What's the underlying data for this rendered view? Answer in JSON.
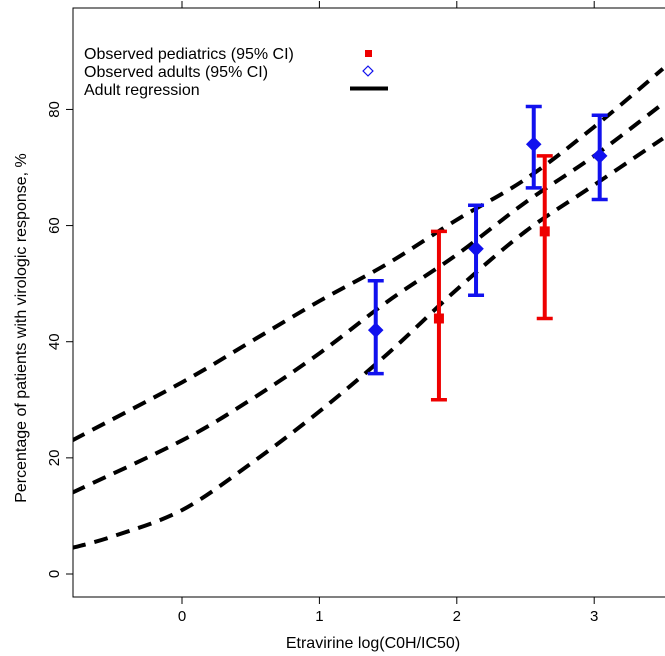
{
  "chart_data": {
    "type": "scatter",
    "xlabel": "Etravirine log(C0H/IC50)",
    "ylabel": "Percentage of patients with virologic response, %",
    "xlim": [
      -0.8,
      3.5
    ],
    "ylim": [
      -4,
      97
    ],
    "x_ticks": [
      0,
      1,
      2,
      3
    ],
    "x_tick_labels": [
      "0",
      "1",
      "2",
      "3"
    ],
    "y_ticks": [
      0,
      20,
      40,
      60,
      80
    ],
    "y_tick_labels": [
      "0",
      "20",
      "40",
      "60",
      "80"
    ],
    "legend_position": "top-left",
    "grid": false,
    "series": [
      {
        "name": "Observed pediatrics (95% CI)",
        "color": "#ee0000",
        "marker": "square",
        "points": [
          {
            "x": 1.87,
            "y": 44,
            "lo": 30,
            "hi": 59
          },
          {
            "x": 2.64,
            "y": 59,
            "lo": 44,
            "hi": 72
          }
        ]
      },
      {
        "name": "Observed adults (95% CI)",
        "color": "#1111ee",
        "marker": "diamond",
        "points": [
          {
            "x": 1.41,
            "y": 42,
            "lo": 34.5,
            "hi": 50.5
          },
          {
            "x": 2.14,
            "y": 56,
            "lo": 48,
            "hi": 63.5
          },
          {
            "x": 2.56,
            "y": 74,
            "lo": 66.5,
            "hi": 80.5
          },
          {
            "x": 3.04,
            "y": 72,
            "lo": 64.5,
            "hi": 79
          }
        ]
      },
      {
        "name": "Adult regression",
        "color": "#000000",
        "line": "dashed",
        "curves": [
          {
            "label": "upper",
            "x": [
              -0.8,
              0,
              0.5,
              1,
              1.5,
              2,
              2.5,
              3,
              3.5
            ],
            "y": [
              23,
              33,
              40,
              47,
              53.5,
              61,
              68,
              77,
              87
            ]
          },
          {
            "label": "mid",
            "x": [
              -0.8,
              0,
              0.5,
              1,
              1.5,
              2,
              2.5,
              3,
              3.5
            ],
            "y": [
              14,
              23,
              30,
              38,
              47,
              55,
              64,
              72,
              81
            ]
          },
          {
            "label": "lower",
            "x": [
              -0.8,
              -0.5,
              0,
              0.5,
              1,
              1.5,
              2,
              2.5,
              3,
              3.5
            ],
            "y": [
              4.5,
              6.5,
              11,
              19,
              28,
              38,
              49,
              59,
              67,
              75
            ]
          }
        ]
      }
    ]
  }
}
